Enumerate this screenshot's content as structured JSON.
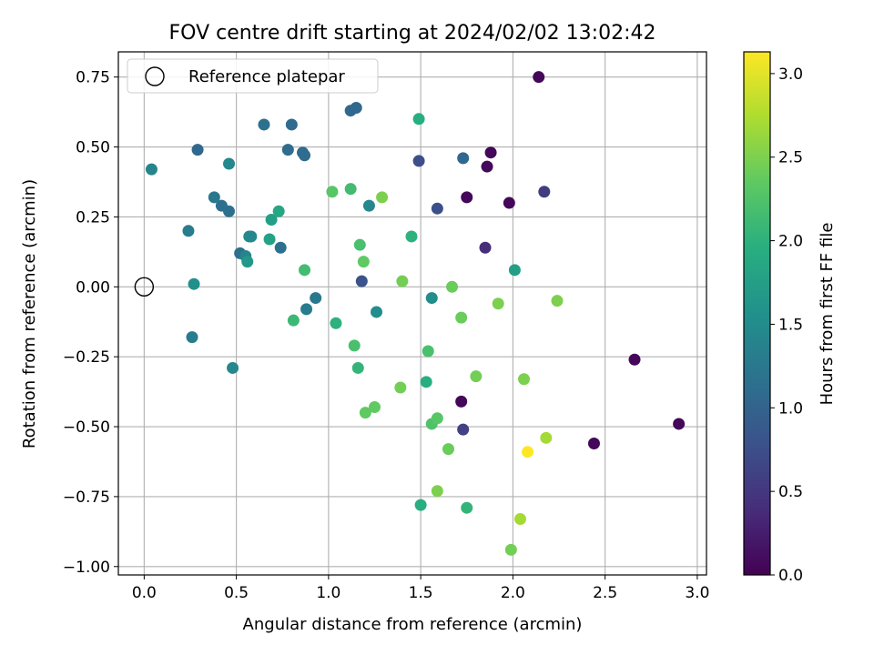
{
  "chart_data": {
    "type": "scatter",
    "title": "FOV centre drift starting at 2024/02/02 13:02:42",
    "xlabel": "Angular distance from reference (arcmin)",
    "ylabel": "Rotation from reference (arcmin)",
    "xlim": [
      -0.14,
      3.05
    ],
    "ylim": [
      -1.03,
      0.84
    ],
    "xticks": [
      "0.0",
      "0.5",
      "1.0",
      "1.5",
      "2.0",
      "2.5",
      "3.0"
    ],
    "yticks": [
      "−1.00",
      "−0.75",
      "−0.50",
      "−0.25",
      "0.00",
      "0.25",
      "0.50",
      "0.75"
    ],
    "grid": true,
    "legend": {
      "location": "upper-left",
      "label": "Reference platepar"
    },
    "reference_point": {
      "x": 0.0,
      "y": 0.0
    },
    "colorbar": {
      "label": "Hours from first FF file",
      "colormap": "viridis",
      "range": [
        0.0,
        3.13
      ],
      "ticks": [
        "0.0",
        "0.5",
        "1.0",
        "1.5",
        "2.0",
        "2.5",
        "3.0"
      ]
    },
    "points": [
      {
        "x": 2.14,
        "y": 0.75,
        "h": 0.05
      },
      {
        "x": 1.88,
        "y": 0.48,
        "h": 0.05
      },
      {
        "x": 1.86,
        "y": 0.43,
        "h": 0.05
      },
      {
        "x": 1.75,
        "y": 0.32,
        "h": 0.05
      },
      {
        "x": 1.98,
        "y": 0.3,
        "h": 0.05
      },
      {
        "x": 1.72,
        "y": -0.41,
        "h": 0.05
      },
      {
        "x": 2.66,
        "y": -0.26,
        "h": 0.05
      },
      {
        "x": 2.44,
        "y": -0.56,
        "h": 0.05
      },
      {
        "x": 2.9,
        "y": -0.49,
        "h": 0.05
      },
      {
        "x": 1.85,
        "y": 0.14,
        "h": 0.4
      },
      {
        "x": 2.17,
        "y": 0.34,
        "h": 0.55
      },
      {
        "x": 1.73,
        "y": -0.51,
        "h": 0.6
      },
      {
        "x": 1.49,
        "y": 0.45,
        "h": 0.75
      },
      {
        "x": 1.59,
        "y": 0.28,
        "h": 0.75
      },
      {
        "x": 1.18,
        "y": 0.02,
        "h": 0.8
      },
      {
        "x": 1.73,
        "y": 0.46,
        "h": 1.05
      },
      {
        "x": 1.12,
        "y": 0.63,
        "h": 1.05
      },
      {
        "x": 1.15,
        "y": 0.64,
        "h": 1.05
      },
      {
        "x": 0.29,
        "y": 0.49,
        "h": 1.05
      },
      {
        "x": 0.8,
        "y": 0.58,
        "h": 1.1
      },
      {
        "x": 0.65,
        "y": 0.58,
        "h": 1.15
      },
      {
        "x": 0.78,
        "y": 0.49,
        "h": 1.1
      },
      {
        "x": 0.86,
        "y": 0.48,
        "h": 1.1
      },
      {
        "x": 0.87,
        "y": 0.47,
        "h": 1.1
      },
      {
        "x": 0.42,
        "y": 0.29,
        "h": 1.15
      },
      {
        "x": 0.46,
        "y": 0.27,
        "h": 1.15
      },
      {
        "x": 0.52,
        "y": 0.12,
        "h": 1.15
      },
      {
        "x": 0.74,
        "y": 0.14,
        "h": 1.15
      },
      {
        "x": 0.38,
        "y": 0.32,
        "h": 1.25
      },
      {
        "x": 0.24,
        "y": 0.2,
        "h": 1.3
      },
      {
        "x": 0.93,
        "y": -0.04,
        "h": 1.25
      },
      {
        "x": 0.88,
        "y": -0.08,
        "h": 1.3
      },
      {
        "x": 1.26,
        "y": -0.09,
        "h": 1.5
      },
      {
        "x": 0.26,
        "y": -0.18,
        "h": 1.3
      },
      {
        "x": 0.48,
        "y": -0.29,
        "h": 1.45
      },
      {
        "x": 0.04,
        "y": 0.42,
        "h": 1.4
      },
      {
        "x": 0.46,
        "y": 0.44,
        "h": 1.45
      },
      {
        "x": 0.55,
        "y": 0.11,
        "h": 1.4
      },
      {
        "x": 0.57,
        "y": 0.18,
        "h": 1.45
      },
      {
        "x": 0.58,
        "y": 0.18,
        "h": 1.45
      },
      {
        "x": 1.22,
        "y": 0.29,
        "h": 1.45
      },
      {
        "x": 1.56,
        "y": -0.04,
        "h": 1.5
      },
      {
        "x": 2.01,
        "y": 0.06,
        "h": 1.75
      },
      {
        "x": 0.27,
        "y": 0.01,
        "h": 1.55
      },
      {
        "x": 0.56,
        "y": 0.09,
        "h": 1.65
      },
      {
        "x": 0.69,
        "y": 0.24,
        "h": 1.75
      },
      {
        "x": 0.68,
        "y": 0.17,
        "h": 1.8
      },
      {
        "x": 0.73,
        "y": 0.27,
        "h": 1.85
      },
      {
        "x": 1.49,
        "y": 0.6,
        "h": 1.95
      },
      {
        "x": 1.45,
        "y": 0.18,
        "h": 2.0
      },
      {
        "x": 1.53,
        "y": -0.34,
        "h": 1.95
      },
      {
        "x": 1.5,
        "y": -0.78,
        "h": 1.95
      },
      {
        "x": 1.04,
        "y": -0.13,
        "h": 2.0
      },
      {
        "x": 1.16,
        "y": -0.29,
        "h": 2.05
      },
      {
        "x": 1.75,
        "y": -0.79,
        "h": 2.05
      },
      {
        "x": 0.81,
        "y": -0.12,
        "h": 2.1
      },
      {
        "x": 0.87,
        "y": 0.06,
        "h": 2.15
      },
      {
        "x": 1.12,
        "y": 0.35,
        "h": 2.15
      },
      {
        "x": 1.17,
        "y": 0.15,
        "h": 2.2
      },
      {
        "x": 1.14,
        "y": -0.21,
        "h": 2.2
      },
      {
        "x": 1.54,
        "y": -0.23,
        "h": 2.2
      },
      {
        "x": 1.56,
        "y": -0.49,
        "h": 2.25
      },
      {
        "x": 1.59,
        "y": -0.47,
        "h": 2.3
      },
      {
        "x": 1.02,
        "y": 0.34,
        "h": 2.3
      },
      {
        "x": 1.19,
        "y": 0.09,
        "h": 2.35
      },
      {
        "x": 1.2,
        "y": -0.45,
        "h": 2.35
      },
      {
        "x": 1.25,
        "y": -0.43,
        "h": 2.35
      },
      {
        "x": 1.65,
        "y": -0.58,
        "h": 2.4
      },
      {
        "x": 1.67,
        "y": 0.0,
        "h": 2.4
      },
      {
        "x": 1.72,
        "y": -0.11,
        "h": 2.4
      },
      {
        "x": 1.8,
        "y": -0.32,
        "h": 2.45
      },
      {
        "x": 1.4,
        "y": 0.02,
        "h": 2.45
      },
      {
        "x": 1.39,
        "y": -0.36,
        "h": 2.45
      },
      {
        "x": 1.29,
        "y": 0.32,
        "h": 2.5
      },
      {
        "x": 1.92,
        "y": -0.06,
        "h": 2.5
      },
      {
        "x": 2.06,
        "y": -0.33,
        "h": 2.5
      },
      {
        "x": 2.24,
        "y": -0.05,
        "h": 2.5
      },
      {
        "x": 1.59,
        "y": -0.73,
        "h": 2.5
      },
      {
        "x": 1.99,
        "y": -0.94,
        "h": 2.45
      },
      {
        "x": 2.18,
        "y": -0.54,
        "h": 2.7
      },
      {
        "x": 2.04,
        "y": -0.83,
        "h": 2.7
      },
      {
        "x": 2.08,
        "y": -0.59,
        "h": 3.13
      }
    ]
  }
}
